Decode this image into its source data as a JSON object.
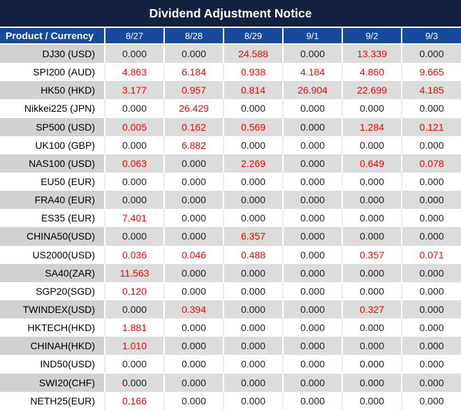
{
  "title": "Dividend Adjustment Notice",
  "colors": {
    "title_bar_bg": "#13203f",
    "header_bg": "#164a9d",
    "highlight_red": "#ff0000",
    "gray_row_product_bg": "#d1d1d1",
    "gray_row_value_bg": "#dcdcdc",
    "white_row_bg": "#ffffff",
    "header_text": "#ffffff",
    "value_text": "#1f1f1f"
  },
  "table": {
    "product_header": "Product / Currency",
    "date_headers": [
      "8/27",
      "8/28",
      "8/29",
      "9/1",
      "9/2",
      "9/3"
    ],
    "rows": [
      {
        "product": "DJ30 (USD)",
        "values": [
          "0.000",
          "0.000",
          "24.588",
          "0.000",
          "13.339",
          "0.000"
        ],
        "red": [
          false,
          false,
          true,
          false,
          true,
          false
        ]
      },
      {
        "product": "SPI200 (AUD)",
        "values": [
          "4.863",
          "6.184",
          "0.938",
          "4.184",
          "4.860",
          "9.665"
        ],
        "red": [
          true,
          true,
          true,
          true,
          true,
          true
        ]
      },
      {
        "product": "HK50 (HKD)",
        "values": [
          "3.177",
          "0.957",
          "0.814",
          "26.904",
          "22.699",
          "4.185"
        ],
        "red": [
          true,
          true,
          true,
          true,
          true,
          true
        ]
      },
      {
        "product": "Nikkei225 (JPN)",
        "values": [
          "0.000",
          "26.429",
          "0.000",
          "0.000",
          "0.000",
          "0.000"
        ],
        "red": [
          false,
          true,
          false,
          false,
          false,
          false
        ]
      },
      {
        "product": "SP500 (USD)",
        "values": [
          "0.005",
          "0.162",
          "0.569",
          "0.000",
          "1.284",
          "0.121"
        ],
        "red": [
          true,
          true,
          true,
          false,
          true,
          true
        ]
      },
      {
        "product": "UK100 (GBP)",
        "values": [
          "0.000",
          "6.882",
          "0.000",
          "0.000",
          "0.000",
          "0.000"
        ],
        "red": [
          false,
          true,
          false,
          false,
          false,
          false
        ]
      },
      {
        "product": "NAS100 (USD)",
        "values": [
          "0.063",
          "0.000",
          "2.269",
          "0.000",
          "0.649",
          "0.078"
        ],
        "red": [
          true,
          false,
          true,
          false,
          true,
          true
        ]
      },
      {
        "product": "EU50 (EUR)",
        "values": [
          "0.000",
          "0.000",
          "0.000",
          "0.000",
          "0.000",
          "0.000"
        ],
        "red": [
          false,
          false,
          false,
          false,
          false,
          false
        ]
      },
      {
        "product": "FRA40 (EUR)",
        "values": [
          "0.000",
          "0.000",
          "0.000",
          "0.000",
          "0.000",
          "0.000"
        ],
        "red": [
          false,
          false,
          false,
          false,
          false,
          false
        ]
      },
      {
        "product": "ES35 (EUR)",
        "values": [
          "7.401",
          "0.000",
          "0.000",
          "0.000",
          "0.000",
          "0.000"
        ],
        "red": [
          true,
          false,
          false,
          false,
          false,
          false
        ]
      },
      {
        "product": "CHINA50(USD)",
        "values": [
          "0.000",
          "0.000",
          "6.357",
          "0.000",
          "0.000",
          "0.000"
        ],
        "red": [
          false,
          false,
          true,
          false,
          false,
          false
        ]
      },
      {
        "product": "US2000(USD)",
        "values": [
          "0.036",
          "0.046",
          "0.488",
          "0.000",
          "0.357",
          "0.071"
        ],
        "red": [
          true,
          true,
          true,
          false,
          true,
          true
        ]
      },
      {
        "product": "SA40(ZAR)",
        "values": [
          "11.563",
          "0.000",
          "0.000",
          "0.000",
          "0.000",
          "0.000"
        ],
        "red": [
          true,
          false,
          false,
          false,
          false,
          false
        ]
      },
      {
        "product": "SGP20(SGD)",
        "values": [
          "0.120",
          "0.000",
          "0.000",
          "0.000",
          "0.000",
          "0.000"
        ],
        "red": [
          true,
          false,
          false,
          false,
          false,
          false
        ]
      },
      {
        "product": "TWINDEX(USD)",
        "values": [
          "0.000",
          "0.394",
          "0.000",
          "0.000",
          "0.327",
          "0.000"
        ],
        "red": [
          false,
          true,
          false,
          false,
          true,
          false
        ]
      },
      {
        "product": "HKTECH(HKD)",
        "values": [
          "1.881",
          "0.000",
          "0.000",
          "0.000",
          "0.000",
          "0.000"
        ],
        "red": [
          true,
          false,
          false,
          false,
          false,
          false
        ]
      },
      {
        "product": "CHINAH(HKD)",
        "values": [
          "1.010",
          "0.000",
          "0.000",
          "0.000",
          "0.000",
          "0.000"
        ],
        "red": [
          true,
          false,
          false,
          false,
          false,
          false
        ]
      },
      {
        "product": "IND50(USD)",
        "values": [
          "0.000",
          "0.000",
          "0.000",
          "0.000",
          "0.000",
          "0.000"
        ],
        "red": [
          false,
          false,
          false,
          false,
          false,
          false
        ]
      },
      {
        "product": "SWI20(CHF)",
        "values": [
          "0.000",
          "0.000",
          "0.000",
          "0.000",
          "0.000",
          "0.000"
        ],
        "red": [
          false,
          false,
          false,
          false,
          false,
          false
        ]
      },
      {
        "product": "NETH25(EUR)",
        "values": [
          "0.166",
          "0.000",
          "0.000",
          "0.000",
          "0.000",
          "0.000"
        ],
        "red": [
          true,
          false,
          false,
          false,
          false,
          false
        ]
      }
    ]
  }
}
